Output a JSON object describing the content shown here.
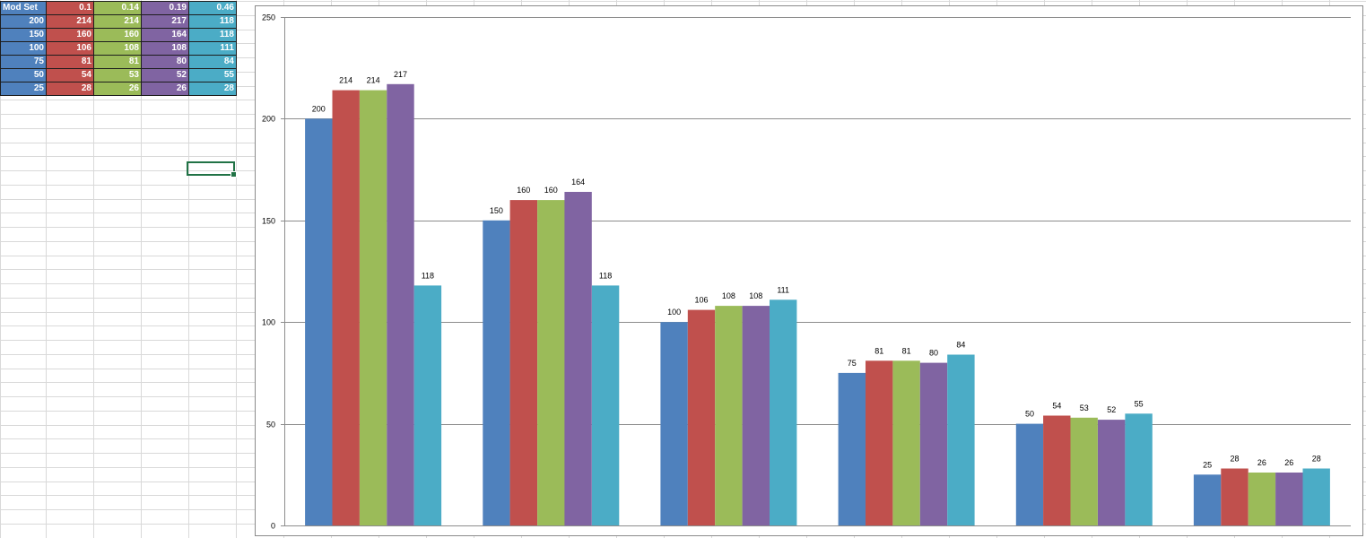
{
  "table": {
    "header": [
      "Mod Set",
      "0.1",
      "0.14",
      "0.19",
      "0.46"
    ],
    "rows": [
      [
        "200",
        "214",
        "214",
        "217",
        "118"
      ],
      [
        "150",
        "160",
        "160",
        "164",
        "118"
      ],
      [
        "100",
        "106",
        "108",
        "108",
        "111"
      ],
      [
        "75",
        "81",
        "81",
        "80",
        "84"
      ],
      [
        "50",
        "54",
        "53",
        "52",
        "55"
      ],
      [
        "25",
        "28",
        "26",
        "26",
        "28"
      ]
    ]
  },
  "colors": {
    "series_0": "#4f81bd",
    "series_1": "#c0504d",
    "series_2": "#9bbb59",
    "series_3": "#8064a2",
    "series_4": "#4bacc6",
    "gridline": "#8c8c8c",
    "active_cell": "#217346"
  },
  "chart_data": {
    "type": "bar",
    "categories": [
      "",
      "",
      "",
      "",
      "",
      ""
    ],
    "series": [
      {
        "values": [
          200,
          150,
          100,
          75,
          50,
          25
        ]
      },
      {
        "values": [
          214,
          160,
          106,
          81,
          54,
          28
        ]
      },
      {
        "values": [
          214,
          160,
          108,
          81,
          53,
          26
        ]
      },
      {
        "values": [
          217,
          164,
          108,
          80,
          52,
          26
        ]
      },
      {
        "values": [
          118,
          118,
          111,
          84,
          55,
          28
        ]
      }
    ],
    "ylim": [
      0,
      250
    ],
    "yticks": [
      0,
      50,
      100,
      150,
      200,
      250
    ],
    "grid": true,
    "legend": "none",
    "data_labels": true
  }
}
